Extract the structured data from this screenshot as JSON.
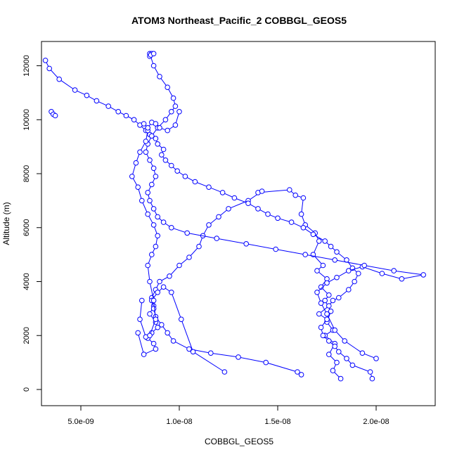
{
  "chart_data": {
    "type": "line",
    "title": "ATOM3 Northeast_Pacific_2 COBBGL_GEOS5",
    "xlabel": "COBBGL_GEOS5",
    "ylabel": "Altitude (m)",
    "xlim": [
      3e-09,
      2.3e-08
    ],
    "ylim": [
      -600,
      12900
    ],
    "x_ticks": [
      5e-09,
      1e-08,
      1.5e-08,
      2e-08
    ],
    "x_tick_labels": [
      "5.0e-09",
      "1.0e-08",
      "1.5e-08",
      "2.0e-08"
    ],
    "y_ticks": [
      0,
      2000,
      4000,
      6000,
      8000,
      10000,
      12000
    ],
    "y_tick_labels": [
      "0",
      "2000",
      "4000",
      "6000",
      "8000",
      "10000",
      "12000"
    ],
    "series_color": "#0000ff",
    "marker": "open-circle",
    "grid": false,
    "series": [
      {
        "x": [
          1.82e-08,
          1.78e-08,
          1.8e-08,
          1.76e-08,
          1.79e-08,
          1.74e-08,
          1.78e-08,
          1.75e-08,
          1.77e-08,
          1.74e-08,
          1.76e-08,
          1.72e-08,
          1.75e-08,
          1.7e-08,
          1.73e-08,
          1.68e-08,
          1.71e-08,
          1.69e-08,
          1.64e-08,
          1.62e-08,
          1.63e-08,
          1.59e-08,
          1.56e-08,
          1.4e-08,
          1.42e-08,
          1.35e-08,
          1.25e-08,
          1.2e-08,
          1.15e-08,
          1.12e-08,
          1.1e-08,
          1.05e-08,
          1e-08,
          9.5e-09,
          9e-09,
          8.8e-09,
          8.6e-09,
          8.7e-09,
          8.5e-09,
          8.8e-09,
          8.9e-09,
          8.6e-09,
          8.4e-09,
          8.7e-09,
          8.8e-09,
          8.2e-09,
          7.9e-09
        ],
        "y": [
          400,
          700,
          1000,
          1300,
          1700,
          2000,
          2200,
          2500,
          2900,
          3300,
          3500,
          3800,
          4100,
          4400,
          4600,
          5000,
          5500,
          5800,
          6100,
          6500,
          7100,
          7200,
          7400,
          7300,
          7350,
          7000,
          6700,
          6400,
          6100,
          5700,
          5300,
          4900,
          4600,
          4200,
          4000,
          3700,
          3400,
          3100,
          2800,
          2500,
          2300,
          2100,
          1900,
          1700,
          1500,
          1300,
          2100
        ]
      },
      {
        "x": [
          1.98e-08,
          1.97e-08,
          1.88e-08,
          1.85e-08,
          1.81e-08,
          1.79e-08,
          1.76e-08,
          1.73e-08,
          1.72e-08,
          1.75e-08,
          1.71e-08,
          1.76e-08,
          1.78e-08,
          1.81e-08,
          1.86e-08,
          1.89e-08,
          1.91e-08,
          1.88e-08,
          1.85e-08,
          1.8e-08,
          1.77e-08,
          1.74e-08,
          1.68e-08,
          1.63e-08,
          1.57e-08,
          1.5e-08,
          1.45e-08,
          1.4e-08,
          1.35e-08,
          1.28e-08,
          1.22e-08,
          1.15e-08,
          1.08e-08,
          1.03e-08,
          9.9e-09,
          9.6e-09,
          9.3e-09,
          9.1e-09,
          9.2e-09,
          8.9e-09,
          8.8e-09,
          8.5e-09,
          8.3e-09,
          8e-09,
          7.7e-09,
          7.3e-09,
          6.9e-09,
          6.4e-09,
          5.8e-09,
          5.3e-09,
          4.7e-09,
          3.9e-09,
          3.4e-09,
          3.2e-09
        ],
        "y": [
          400,
          650,
          900,
          1150,
          1400,
          1600,
          1800,
          2000,
          2300,
          2600,
          2800,
          3100,
          3300,
          3400,
          3700,
          4000,
          4300,
          4500,
          4800,
          5100,
          5300,
          5500,
          5750,
          6000,
          6200,
          6350,
          6500,
          6700,
          6900,
          7100,
          7300,
          7500,
          7700,
          7900,
          8100,
          8300,
          8500,
          8700,
          8900,
          9100,
          9300,
          9450,
          9600,
          9800,
          10000,
          10150,
          10300,
          10500,
          10700,
          10900,
          11100,
          11500,
          11900,
          12200
        ]
      },
      {
        "x": [
          2e-08,
          1.93e-08,
          1.84e-08,
          1.79e-08,
          1.75e-08,
          1.72e-08,
          1.7e-08,
          1.75e-08,
          1.8e-08,
          1.86e-08,
          1.93e-08,
          2.03e-08,
          2.13e-08,
          2.24e-08,
          2.09e-08,
          1.94e-08,
          1.79e-08,
          1.64e-08,
          1.49e-08,
          1.34e-08,
          1.19e-08,
          1.04e-08,
          9.6e-09,
          9.2e-09,
          8.9e-09,
          8.7e-09,
          8.5e-09,
          8.4e-09,
          8.6e-09,
          8.8e-09,
          8.7e-09,
          8.5e-09,
          8.3e-09,
          8.4e-09,
          8.6e-09,
          8.9e-09,
          9.3e-09,
          9.6e-09,
          9.8e-09,
          9.7e-09,
          9.4e-09,
          9e-09,
          8.7e-09,
          8.5e-09
        ],
        "y": [
          1150,
          1350,
          1800,
          2200,
          2800,
          3200,
          3600,
          3950,
          4150,
          4400,
          4550,
          4300,
          4100,
          4250,
          4400,
          4600,
          4800,
          5000,
          5200,
          5400,
          5600,
          5800,
          6000,
          6200,
          6400,
          6700,
          7000,
          7300,
          7600,
          7900,
          8200,
          8500,
          8800,
          9100,
          9400,
          9700,
          10000,
          10300,
          10500,
          10800,
          11200,
          11600,
          12000,
          12450
        ]
      },
      {
        "x": [
          1.62e-08,
          1.6e-08,
          1.44e-08,
          1.3e-08,
          1.16e-08,
          1.05e-08,
          9.7e-09,
          9.4e-09,
          9.1e-09,
          8.8e-09,
          8.7e-09,
          8.6e-09,
          8.9e-09,
          9.2e-09,
          9.6e-09,
          1.01e-08,
          1.07e-08,
          1.23e-08
        ],
        "y": [
          550,
          650,
          1000,
          1200,
          1350,
          1500,
          1800,
          2100,
          2400,
          2700,
          3000,
          3300,
          3600,
          3800,
          3600,
          2600,
          1400,
          650
        ]
      },
      {
        "x": [
          8.1e-09,
          8e-09,
          8.3e-09,
          8.5e-09,
          8.8e-09,
          8.7e-09,
          8.5e-09,
          8.4e-09,
          8.6e-09,
          8.8e-09,
          8.9e-09,
          8.7e-09,
          8.4e-09,
          8.1e-09,
          7.9e-09,
          7.6e-09,
          7.8e-09,
          8e-09,
          8.3e-09,
          8.4e-09
        ],
        "y": [
          3300,
          2600,
          1950,
          2000,
          2600,
          3300,
          4000,
          4600,
          5000,
          5300,
          5700,
          6100,
          6500,
          7000,
          7500,
          7900,
          8400,
          8800,
          9200,
          9600
        ]
      },
      {
        "x": [
          8.2e-09,
          8.4e-09,
          8.6e-09,
          8.8e-09,
          9e-09,
          9.4e-09,
          9.8e-09,
          1e-08
        ],
        "y": [
          9850,
          9700,
          9900,
          9850,
          9700,
          9600,
          9800,
          10300
        ]
      },
      {
        "x": [
          8.5e-09,
          8.6e-09,
          8.55e-09,
          8.7e-09
        ],
        "y": [
          12350,
          12450,
          12400,
          12450
        ]
      },
      {
        "x": [
          3.5e-09,
          3.6e-09,
          3.7e-09
        ],
        "y": [
          10300,
          10200,
          10150
        ]
      }
    ]
  }
}
